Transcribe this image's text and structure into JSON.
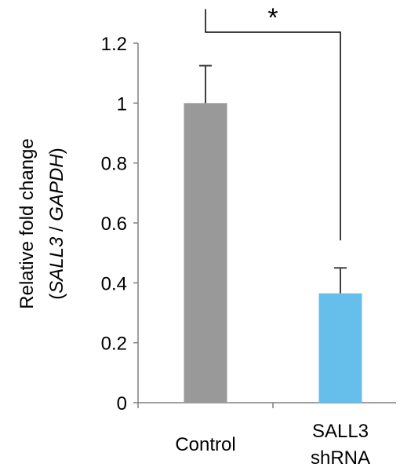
{
  "chart_data": {
    "type": "bar",
    "categories": [
      [
        "Control"
      ],
      [
        "SALL3",
        "shRNA"
      ]
    ],
    "values": [
      1.0,
      0.365
    ],
    "errors": [
      0.125,
      0.085
    ],
    "colors": [
      "#999999",
      "#66bfeb"
    ],
    "ylabel": {
      "line1": "Relative fold change",
      "line2_prefix": "(",
      "line2_gene1": "SALL3",
      "line2_sep": " / ",
      "line2_gene2": "GAPDH",
      "line2_suffix": ")"
    },
    "ylim": [
      0,
      1.2
    ],
    "yticks": [
      0,
      0.2,
      0.4,
      0.6,
      0.8,
      1,
      1.2
    ],
    "ytick_labels": [
      "0",
      "0.2",
      "0.4",
      "0.6",
      "0.8",
      "1",
      "1.2"
    ],
    "grid": false,
    "significance": {
      "between": [
        0,
        1
      ],
      "label": "*"
    }
  }
}
